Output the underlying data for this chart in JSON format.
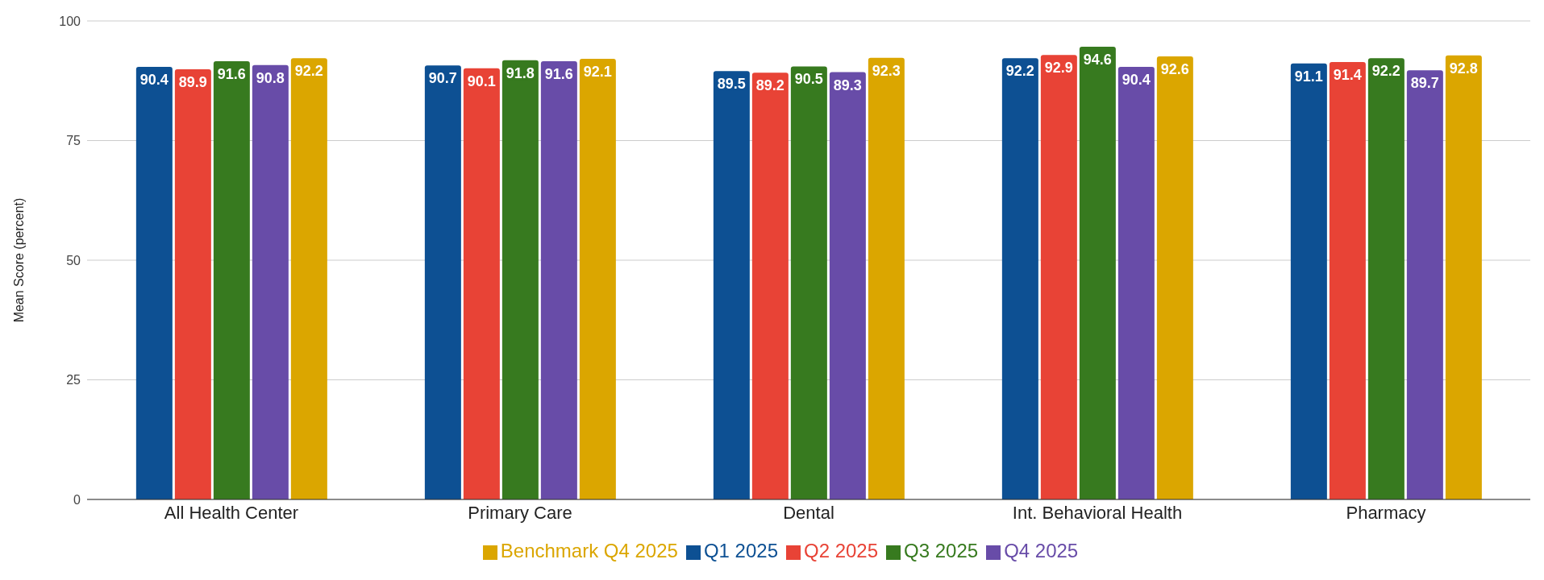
{
  "chart_data": {
    "type": "bar",
    "ylabel": "Mean Score (percent)",
    "categories": [
      "All Health Center",
      "Primary Care",
      "Dental",
      "Int. Behavioral Health",
      "Pharmacy"
    ],
    "series": [
      {
        "name": "Q1 2025",
        "color": "#0d5093",
        "values": [
          90.4,
          90.7,
          89.5,
          92.2,
          91.1
        ]
      },
      {
        "name": "Q2 2025",
        "color": "#e84336",
        "values": [
          89.9,
          90.1,
          89.2,
          92.9,
          91.4
        ]
      },
      {
        "name": "Q3 2025",
        "color": "#377a1f",
        "values": [
          91.6,
          91.8,
          90.5,
          94.6,
          92.2
        ]
      },
      {
        "name": "Q4 2025",
        "color": "#684ca8",
        "values": [
          90.8,
          91.6,
          89.3,
          90.4,
          89.7
        ]
      },
      {
        "name": "Benchmark Q4 2025",
        "color": "#dba600",
        "values": [
          92.2,
          92.1,
          92.3,
          92.6,
          92.8
        ]
      }
    ],
    "ylim": [
      0,
      100
    ],
    "yticks": [
      0,
      25,
      50,
      75,
      100
    ],
    "grid": "y",
    "legend": "bottom",
    "data_labels": true
  }
}
